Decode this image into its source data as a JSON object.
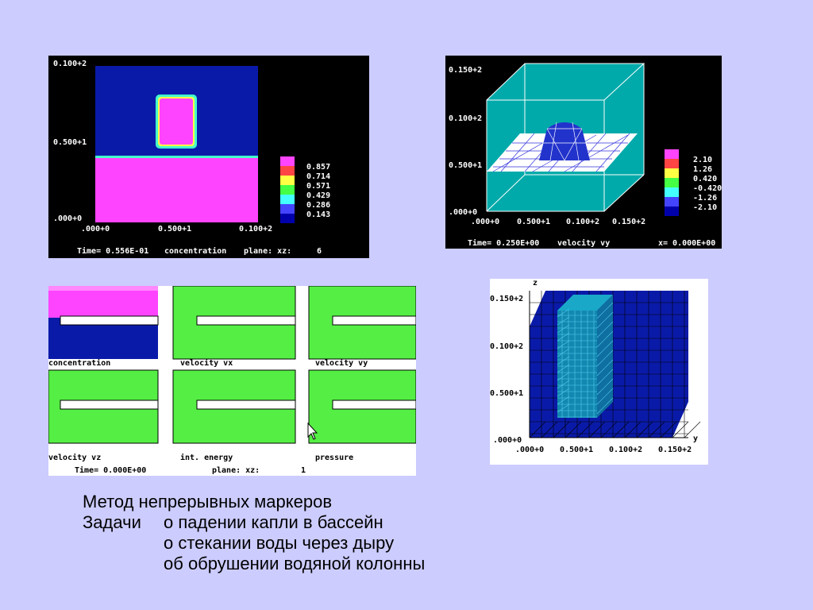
{
  "panel1": {
    "y_ticks": [
      "0.100+2",
      "0.500+1",
      ".000+0"
    ],
    "x_ticks": [
      ".000+0",
      "0.500+1",
      "0.100+2"
    ],
    "legend": [
      "0.857",
      "0.714",
      "0.571",
      "0.429",
      "0.286",
      "0.143"
    ],
    "legend_colors": [
      "#ff44ff",
      "#ff4444",
      "#ffff44",
      "#44ff44",
      "#44ffff",
      "#4444ff",
      "#0000aa"
    ],
    "footer_time": "Time= 0.556E-01",
    "footer_var": "concentration",
    "footer_plane": "plane: xz:",
    "footer_plane_val": "6"
  },
  "panel2": {
    "y_ticks": [
      "0.150+2",
      "0.100+2",
      "0.500+1",
      ".000+0"
    ],
    "x_ticks": [
      ".000+0",
      "0.500+1",
      "0.100+2",
      "0.150+2"
    ],
    "legend": [
      "2.10",
      "1.26",
      "0.420",
      "-0.420",
      "-1.26",
      "-2.10"
    ],
    "legend_colors": [
      "#ff44ff",
      "#ff4444",
      "#ffff44",
      "#44ff44",
      "#44ffff",
      "#4444ff",
      "#0000aa"
    ],
    "footer_time": "Time= 0.250E+00",
    "footer_var": "velocity vy",
    "footer_x": "x= 0.000E+00"
  },
  "panel3": {
    "labels": [
      "concentration",
      "velocity vx",
      "velocity vy",
      "velocity vz",
      "int. energy",
      "pressure"
    ],
    "footer_time": "Time= 0.000E+00",
    "footer_plane": "plane: xz:",
    "footer_plane_val": "1"
  },
  "panel4": {
    "axis_z": "z",
    "axis_y": "y",
    "y_ticks": [
      "0.150+2",
      "0.100+2",
      "0.500+1",
      ".000+0"
    ],
    "x_ticks": [
      ".000+0",
      "0.500+1",
      "0.100+2",
      "0.150+2"
    ]
  },
  "caption": {
    "line1": "Метод непрерывных маркеров",
    "line2_label": "Задачи",
    "line2_text": "о падении капли в бассейн",
    "line3": "о стекании воды через дыру",
    "line4": "об обрушении водяной колонны"
  }
}
